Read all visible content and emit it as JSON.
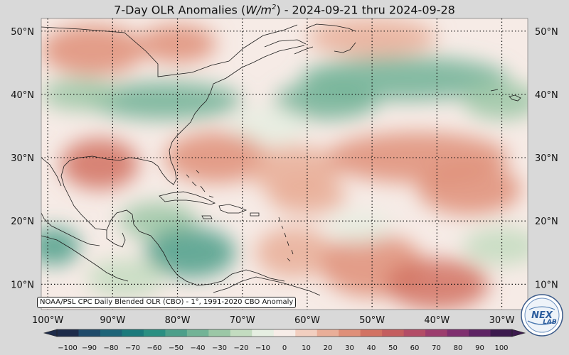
{
  "title": {
    "prefix": "7-Day OLR Anomalies (",
    "unit_base": "W/m",
    "unit_exp": "2",
    "suffix": ") - 2024-09-21 thru 2024-09-28"
  },
  "map": {
    "lat_labels": [
      "50°N",
      "40°N",
      "30°N",
      "20°N",
      "10°N"
    ],
    "lat_values": [
      50,
      40,
      30,
      20,
      10
    ],
    "lon_labels": [
      "100°W",
      "90°W",
      "80°W",
      "70°W",
      "60°W",
      "50°W",
      "40°W",
      "30°W"
    ],
    "lon_values": [
      -100,
      -90,
      -80,
      -70,
      -60,
      -50,
      -40,
      -30
    ],
    "extent": {
      "lon_min": -101,
      "lon_max": -26,
      "lat_min": 6,
      "lat_max": 52
    }
  },
  "source_text": "NOAA/PSL CPC Daily Blended OLR (CBO) - 1°, 1991-2020 CBO Anomaly",
  "colorbar": {
    "ticks": [
      "−100",
      "−90",
      "−80",
      "−70",
      "−60",
      "−50",
      "−40",
      "−30",
      "−20",
      "−10",
      "0",
      "10",
      "20",
      "30",
      "40",
      "50",
      "60",
      "70",
      "80",
      "90",
      "100"
    ],
    "colors": [
      "#1d2b4a",
      "#1f4a6a",
      "#1e6478",
      "#1b7a7c",
      "#2a8f82",
      "#4c9f8a",
      "#72b396",
      "#9bc7a6",
      "#c3dcc0",
      "#e6efe2",
      "#f7ede8",
      "#f2cfc0",
      "#e9ae98",
      "#df8f78",
      "#d27262",
      "#c45e5f",
      "#b34d67",
      "#9c3d6e",
      "#7f2f6f",
      "#5e2464",
      "#3c1a4e"
    ]
  },
  "anomaly_blobs": [
    {
      "lon": -93,
      "lat": 47,
      "rx": 8,
      "ry": 4,
      "value": 30
    },
    {
      "lon": -80,
      "lat": 48,
      "rx": 6,
      "ry": 3,
      "value": 25
    },
    {
      "lon": -50,
      "lat": 49,
      "rx": 10,
      "ry": 3,
      "value": 20
    },
    {
      "lon": -82,
      "lat": 39,
      "rx": 12,
      "ry": 3,
      "value": -40
    },
    {
      "lon": -95,
      "lat": 40,
      "rx": 6,
      "ry": 2.5,
      "value": -30
    },
    {
      "lon": -57,
      "lat": 39,
      "rx": 8,
      "ry": 3,
      "value": -40
    },
    {
      "lon": -45,
      "lat": 42.5,
      "rx": 16,
      "ry": 3.5,
      "value": -45
    },
    {
      "lon": -30,
      "lat": 39,
      "rx": 6,
      "ry": 3,
      "value": -35
    },
    {
      "lon": -66,
      "lat": 35,
      "rx": 6,
      "ry": 3,
      "value": -10
    },
    {
      "lon": -92,
      "lat": 29,
      "rx": 6,
      "ry": 4,
      "value": 40
    },
    {
      "lon": -74,
      "lat": 30,
      "rx": 8,
      "ry": 4,
      "value": 25
    },
    {
      "lon": -62,
      "lat": 28,
      "rx": 7,
      "ry": 4,
      "value": 20
    },
    {
      "lon": -43,
      "lat": 30,
      "rx": 14,
      "ry": 4,
      "value": 30
    },
    {
      "lon": -35,
      "lat": 25,
      "rx": 8,
      "ry": 4,
      "value": 25
    },
    {
      "lon": -60,
      "lat": 24,
      "rx": 6,
      "ry": 3,
      "value": 20
    },
    {
      "lon": -83,
      "lat": 20,
      "rx": 6,
      "ry": 3,
      "value": -30
    },
    {
      "lon": -78,
      "lat": 15,
      "rx": 7,
      "ry": 4,
      "value": -55
    },
    {
      "lon": -99,
      "lat": 16,
      "rx": 4,
      "ry": 3,
      "value": -55
    },
    {
      "lon": -88,
      "lat": 11,
      "rx": 6,
      "ry": 3,
      "value": -20
    },
    {
      "lon": -62,
      "lat": 15,
      "rx": 6,
      "ry": 4,
      "value": 20
    },
    {
      "lon": -50,
      "lat": 13,
      "rx": 8,
      "ry": 5,
      "value": 30
    },
    {
      "lon": -40,
      "lat": 10,
      "rx": 8,
      "ry": 4,
      "value": 40
    },
    {
      "lon": -30,
      "lat": 16,
      "rx": 6,
      "ry": 3,
      "value": -25
    },
    {
      "lon": -52,
      "lat": 19,
      "rx": 5,
      "ry": 2.5,
      "value": -10
    }
  ]
}
